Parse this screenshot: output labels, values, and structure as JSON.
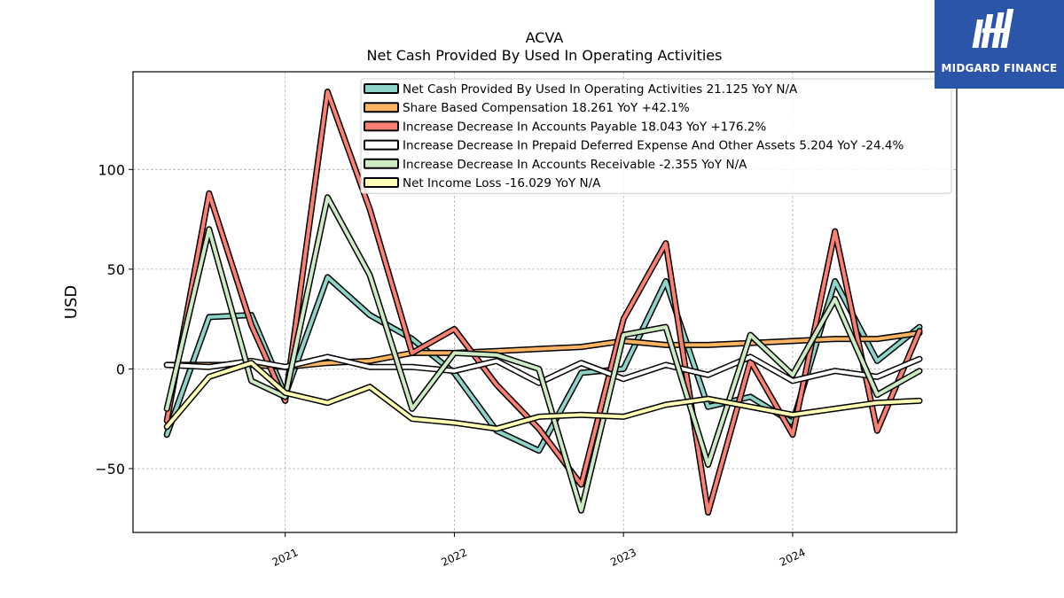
{
  "chart_data": {
    "type": "line",
    "title": "ACVA",
    "subtitle": "Net Cash Provided By Used In Operating Activities",
    "ylabel": "USD",
    "xlabel": "",
    "ylim": [
      -82,
      149
    ],
    "xlim": [
      2020.1,
      2024.97
    ],
    "yticks": [
      -50,
      0,
      50,
      100
    ],
    "xticks": [
      {
        "value": 2021.0,
        "label": "2021"
      },
      {
        "value": 2022.0,
        "label": "2022"
      },
      {
        "value": 2023.0,
        "label": "2023"
      },
      {
        "value": 2024.0,
        "label": "2024"
      }
    ],
    "grid": true,
    "legend_position": "top-center",
    "x": [
      2020.3,
      2020.55,
      2020.8,
      2021.0,
      2021.25,
      2021.5,
      2021.75,
      2022.0,
      2022.25,
      2022.5,
      2022.75,
      2023.0,
      2023.25,
      2023.5,
      2023.75,
      2024.0,
      2024.25,
      2024.5,
      2024.75
    ],
    "series": [
      {
        "name": "Net Cash Provided By Used In Operating Activities",
        "legend_suffix": "21.125 YoY N/A",
        "color": "#8dd3c7",
        "values": [
          -33,
          26,
          27,
          -13,
          46,
          27,
          15,
          -2,
          -31,
          -41,
          -2,
          0,
          44,
          -19,
          -14,
          -27,
          44,
          4,
          21
        ]
      },
      {
        "name": "Share Based Compensation",
        "legend_suffix": "18.261 YoY +42.1%",
        "color": "#fdb462",
        "values": [
          2,
          2,
          2,
          1,
          3,
          4,
          8,
          8,
          9,
          10,
          11,
          14,
          12,
          12,
          13,
          14,
          15,
          15,
          18
        ]
      },
      {
        "name": "Increase Decrease In Accounts Payable",
        "legend_suffix": "18.043 YoY +176.2%",
        "color": "#fb8072",
        "values": [
          -26,
          88,
          22,
          -16,
          139,
          80,
          8,
          20,
          -8,
          -30,
          -58,
          25,
          63,
          -72,
          4,
          -33,
          69,
          -31,
          19
        ]
      },
      {
        "name": "Increase Decrease In Prepaid Deferred Expense And Other Assets",
        "legend_suffix": "5.204 YoY -24.4%",
        "color": "#ffffff",
        "values": [
          2,
          1,
          4,
          1,
          6,
          1,
          1,
          -1,
          4,
          -7,
          3,
          -5,
          2,
          -3,
          6,
          -6,
          -1,
          -4,
          5
        ]
      },
      {
        "name": "Increase Decrease In Accounts Receivable",
        "legend_suffix": "-2.355 YoY N/A",
        "color": "#ccebc5",
        "values": [
          -20,
          70,
          -6,
          -14,
          86,
          47,
          -20,
          8,
          7,
          0,
          -71,
          17,
          21,
          -48,
          17,
          -3,
          35,
          -13,
          -1
        ]
      },
      {
        "name": "Net Income Loss",
        "legend_suffix": "-16.029 YoY N/A",
        "color": "#ffffb3",
        "values": [
          -29,
          -4,
          3,
          -12,
          -17,
          -9,
          -25,
          -27,
          -30,
          -24,
          -23,
          -24,
          -18,
          -15,
          -19,
          -23,
          -20,
          -17,
          -16
        ]
      }
    ]
  },
  "watermark": {
    "brand": "MIDGARD FINANCE"
  }
}
